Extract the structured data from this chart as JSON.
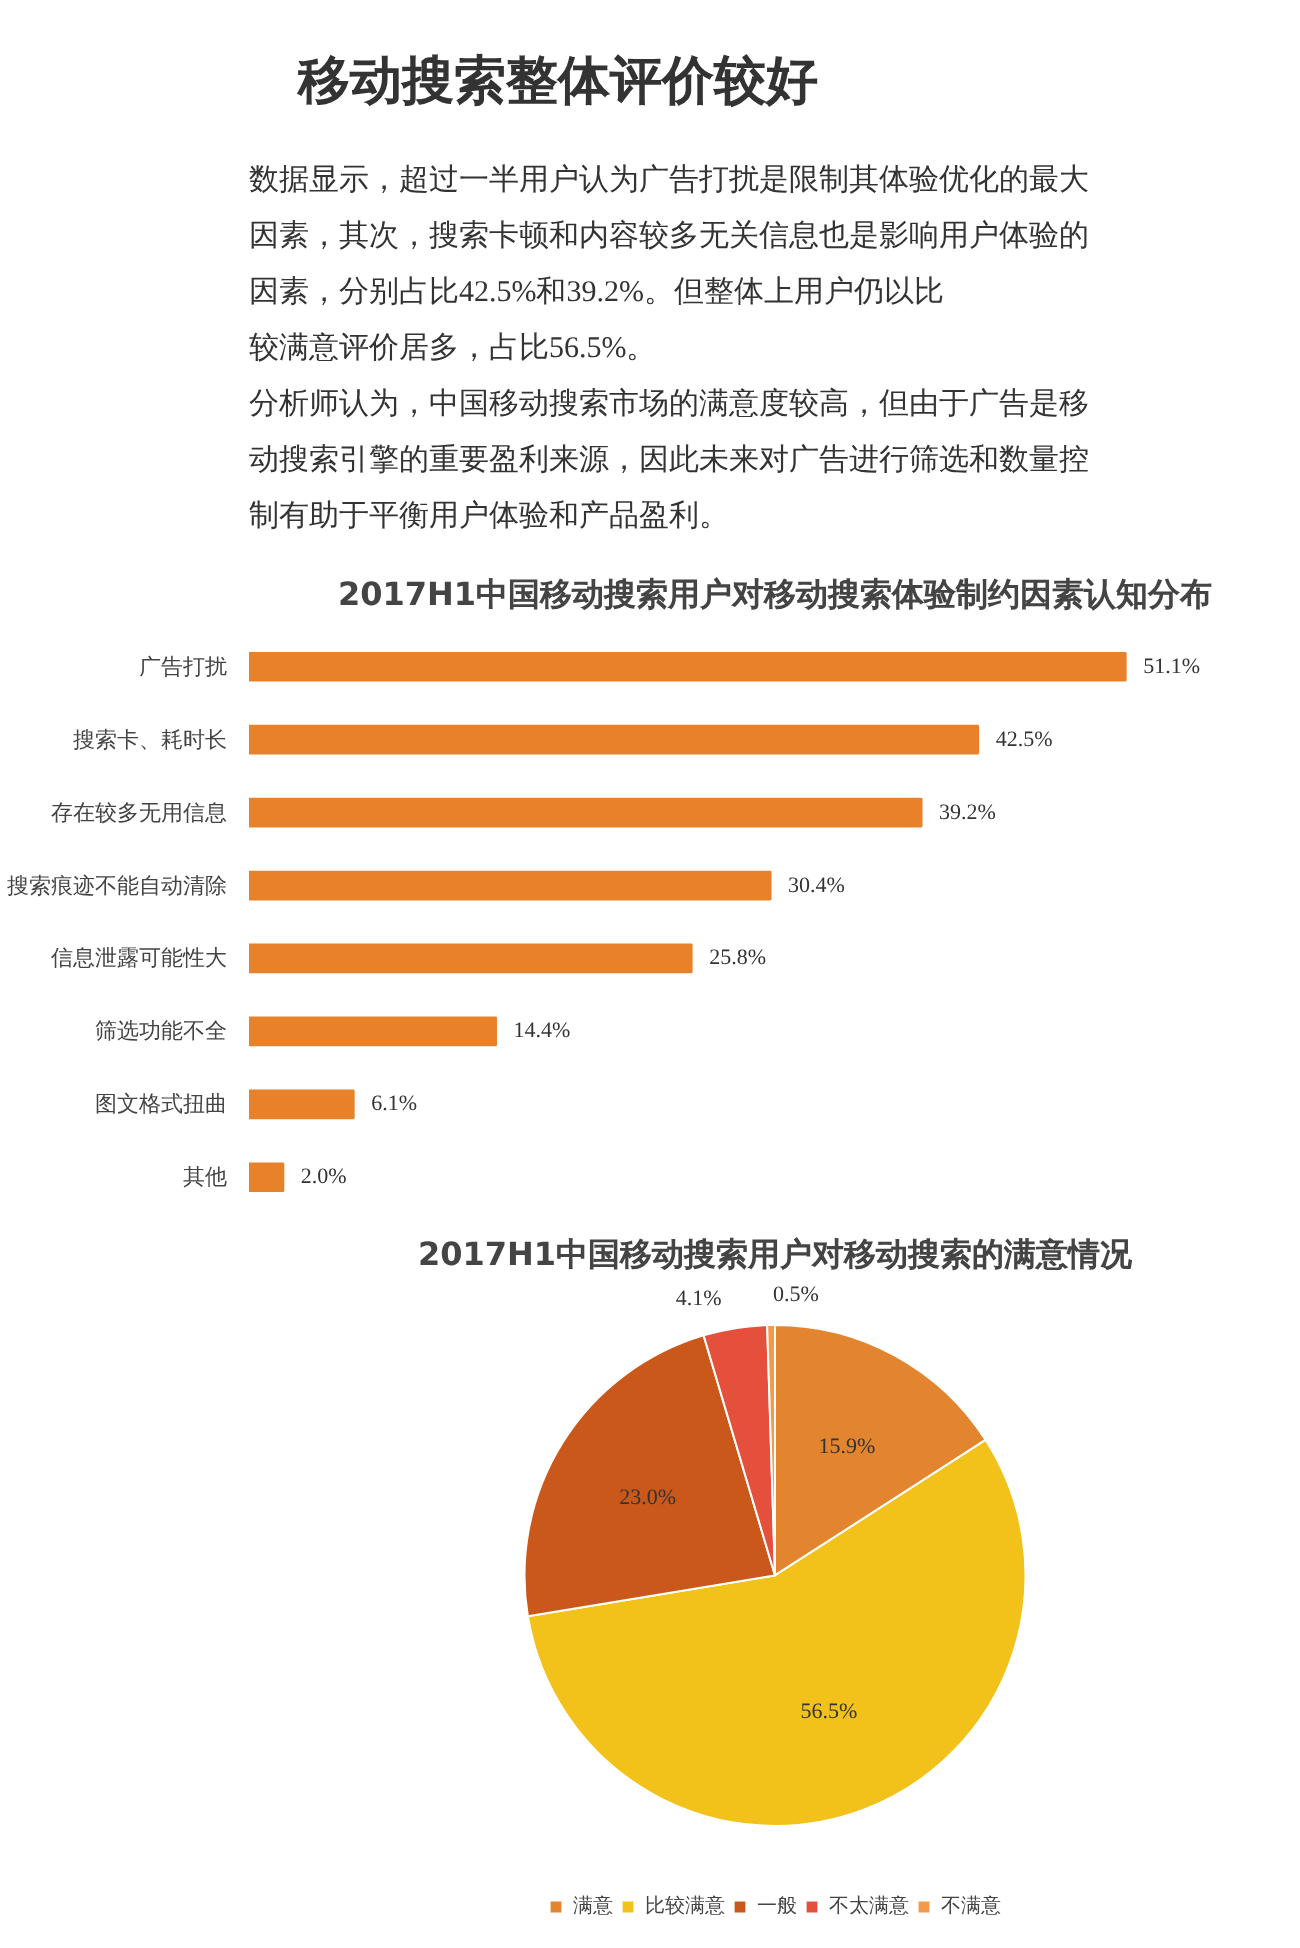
{
  "chart_data": [
    {
      "type": "other",
      "title": "移动搜索整体评价较好",
      "annotations": [
        "数据显示，超过一半用户认为广告打扰是限制其体验优化的最大因素，其次，搜索卡顿和内容较多无关信息也是影响用户体验的因素，分别占比42.5%和39.2%。但整体上用户仍以比较满意评价居多，占比56.5%。",
        "分析师认为，中国移动搜索市场的满意度较高，但由于广告是移动搜索引擎的重要盈利来源，因此未来对广告进行筛选和数量控制有助于平衡用户体验和产品盈利。"
      ]
    },
    {
      "type": "bar",
      "orientation": "horizontal",
      "title": "2017H1中国移动搜索用户对移动搜索体验制约因素认知分布",
      "categories": [
        "广告打扰",
        "搜索卡、耗时长",
        "存在较多无用信息",
        "搜索痕迹不能自动清除",
        "信息泄露可能性大",
        "筛选功能不全",
        "图文格式扭曲",
        "其他"
      ],
      "values": [
        51.1,
        42.5,
        39.2,
        30.4,
        25.8,
        14.4,
        6.1,
        2.0
      ],
      "color": "#e8822a",
      "value_labels": [
        "51.1%",
        "42.5%",
        "39.2%",
        "30.4%",
        "25.8%",
        "14.4%",
        "6.1%",
        "2.0%"
      ]
    },
    {
      "type": "pie",
      "title": "2017H1中国移动搜索用户对移动搜索的满意情况",
      "categories": [
        "满意",
        "比较满意",
        "一般",
        "不太满意",
        "不满意"
      ],
      "values": [
        15.9,
        56.5,
        23.0,
        4.1,
        0.5
      ],
      "colors": [
        "#e2852e",
        "#f2c21b",
        "#c9581a",
        "#e5503c",
        "#f39a4a"
      ],
      "value_labels": [
        "15.9%",
        "56.5%",
        "23.0%",
        "4.1%",
        "0.5%"
      ],
      "legend": "bottom"
    }
  ]
}
